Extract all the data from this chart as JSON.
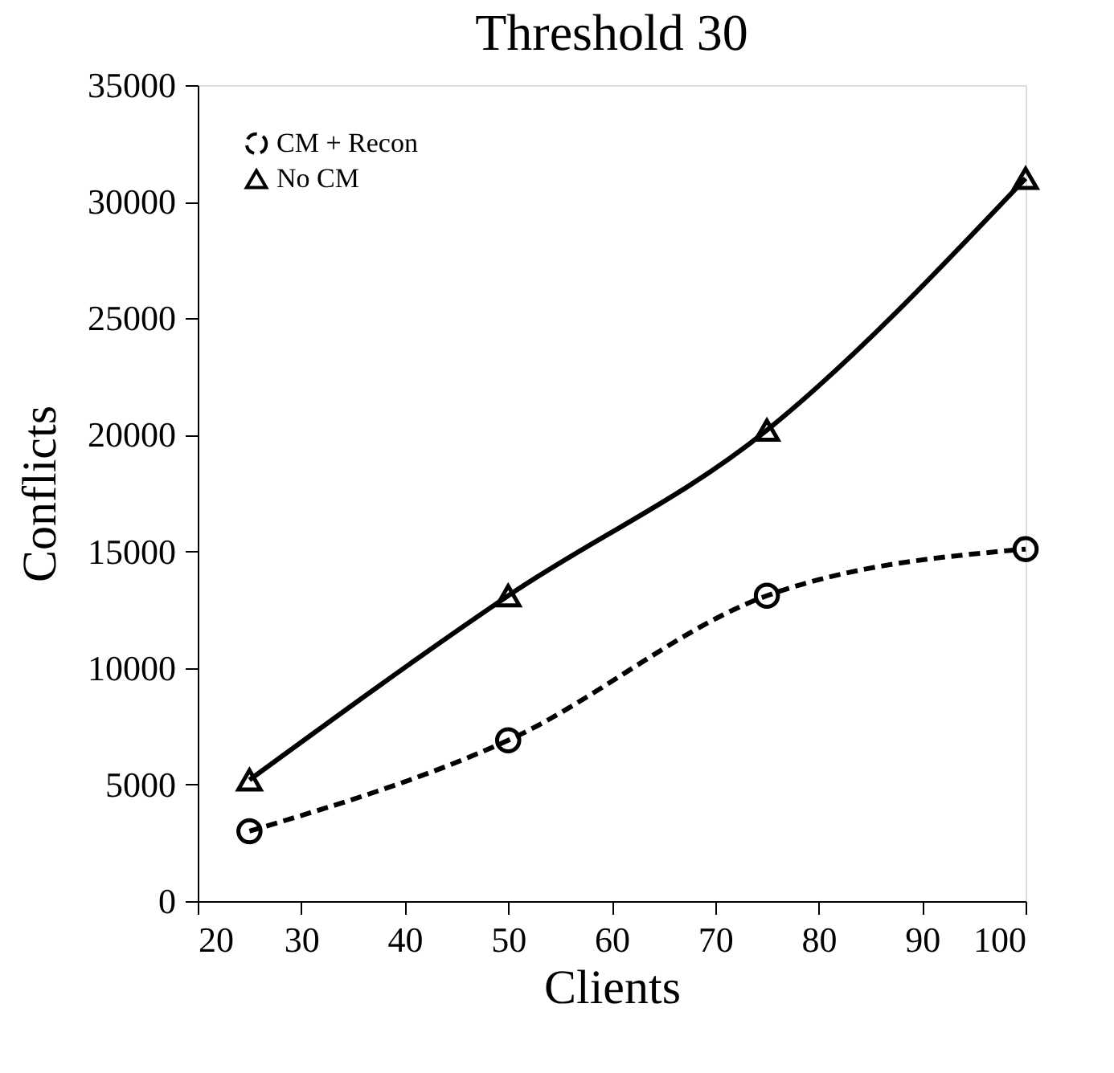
{
  "chart_data": {
    "type": "line",
    "title": "Threshold 30",
    "xlabel": "Clients",
    "ylabel": "Conflicts",
    "x": [
      25,
      50,
      75,
      100
    ],
    "series": [
      {
        "name": "CM + Recon",
        "color": "#000000",
        "values": [
          3000,
          6900,
          13100,
          15100
        ],
        "marker": "circle",
        "line_style": "dashed"
      },
      {
        "name": "No CM",
        "color": "#000000",
        "values": [
          5200,
          13100,
          20200,
          31000
        ],
        "marker": "triangle",
        "line_style": "solid"
      }
    ],
    "xlim": [
      20,
      100
    ],
    "xticks": [
      20,
      30,
      40,
      50,
      60,
      70,
      80,
      90,
      100
    ],
    "ylim": [
      0,
      35000
    ],
    "yticks": [
      0,
      5000,
      10000,
      15000,
      20000,
      25000,
      30000,
      35000
    ],
    "grid": false,
    "legend": "top left"
  }
}
